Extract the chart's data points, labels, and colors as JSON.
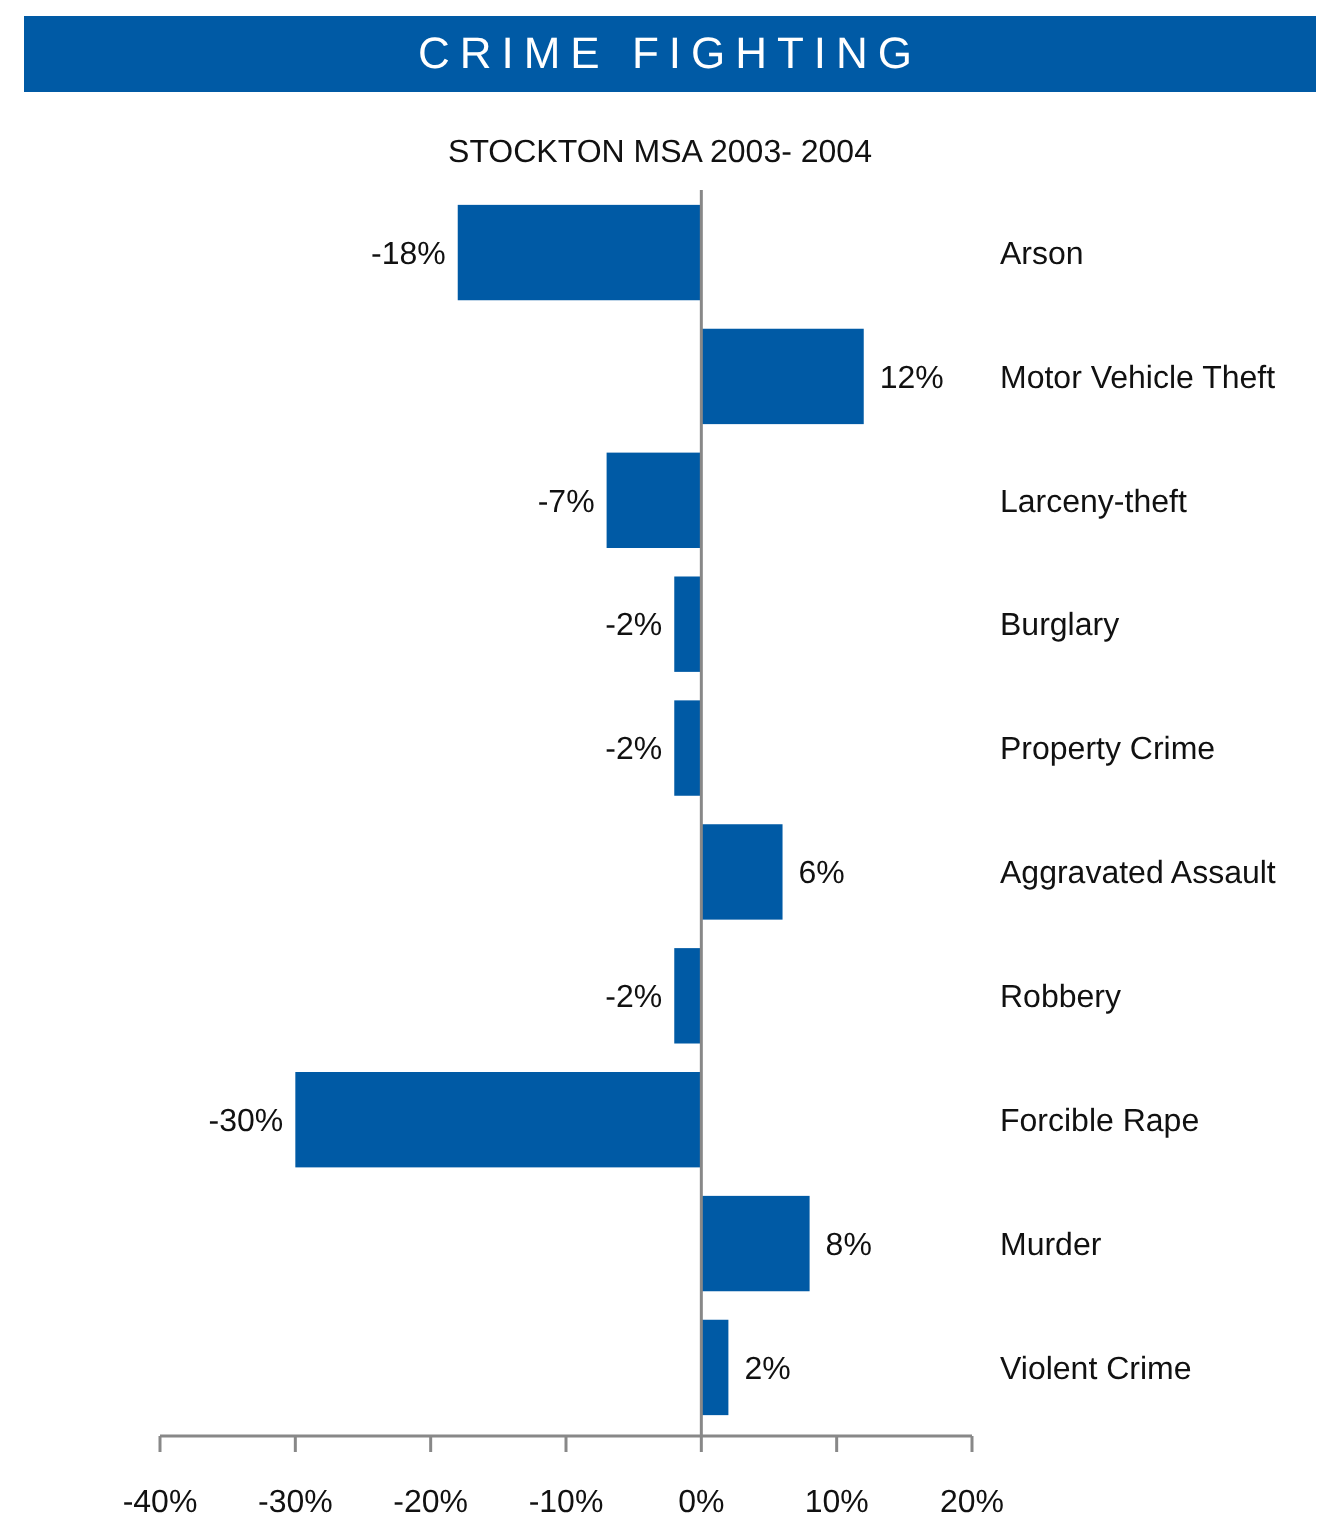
{
  "chart_data": {
    "type": "bar",
    "orientation": "horizontal",
    "title": "CRIME FIGHTING",
    "subtitle": "STOCKTON MSA 2003- 2004",
    "categories": [
      "Arson",
      "Motor Vehicle Theft",
      "Larceny-theft",
      "Burglary",
      "Property Crime",
      "Aggravated Assault",
      "Robbery",
      "Forcible Rape",
      "Murder",
      "Violent Crime"
    ],
    "values": [
      -18,
      12,
      -7,
      -2,
      -2,
      6,
      -2,
      -30,
      8,
      2
    ],
    "value_labels": [
      "-18%",
      "12%",
      "-7%",
      "-2%",
      "-2%",
      "6%",
      "-2%",
      "-30%",
      "8%",
      "2%"
    ],
    "color": "#005aa5",
    "xlim": [
      -40,
      20
    ],
    "xticks": [
      {
        "value": -40,
        "label": "-40%"
      },
      {
        "value": -30,
        "label": "-30%"
      },
      {
        "value": -20,
        "label": "-20%"
      },
      {
        "value": -10,
        "label": "-10%"
      },
      {
        "value": 0,
        "label": "0%"
      },
      {
        "value": 10,
        "label": "10%"
      },
      {
        "value": 20,
        "label": "20%"
      }
    ],
    "data_labels": false
  }
}
